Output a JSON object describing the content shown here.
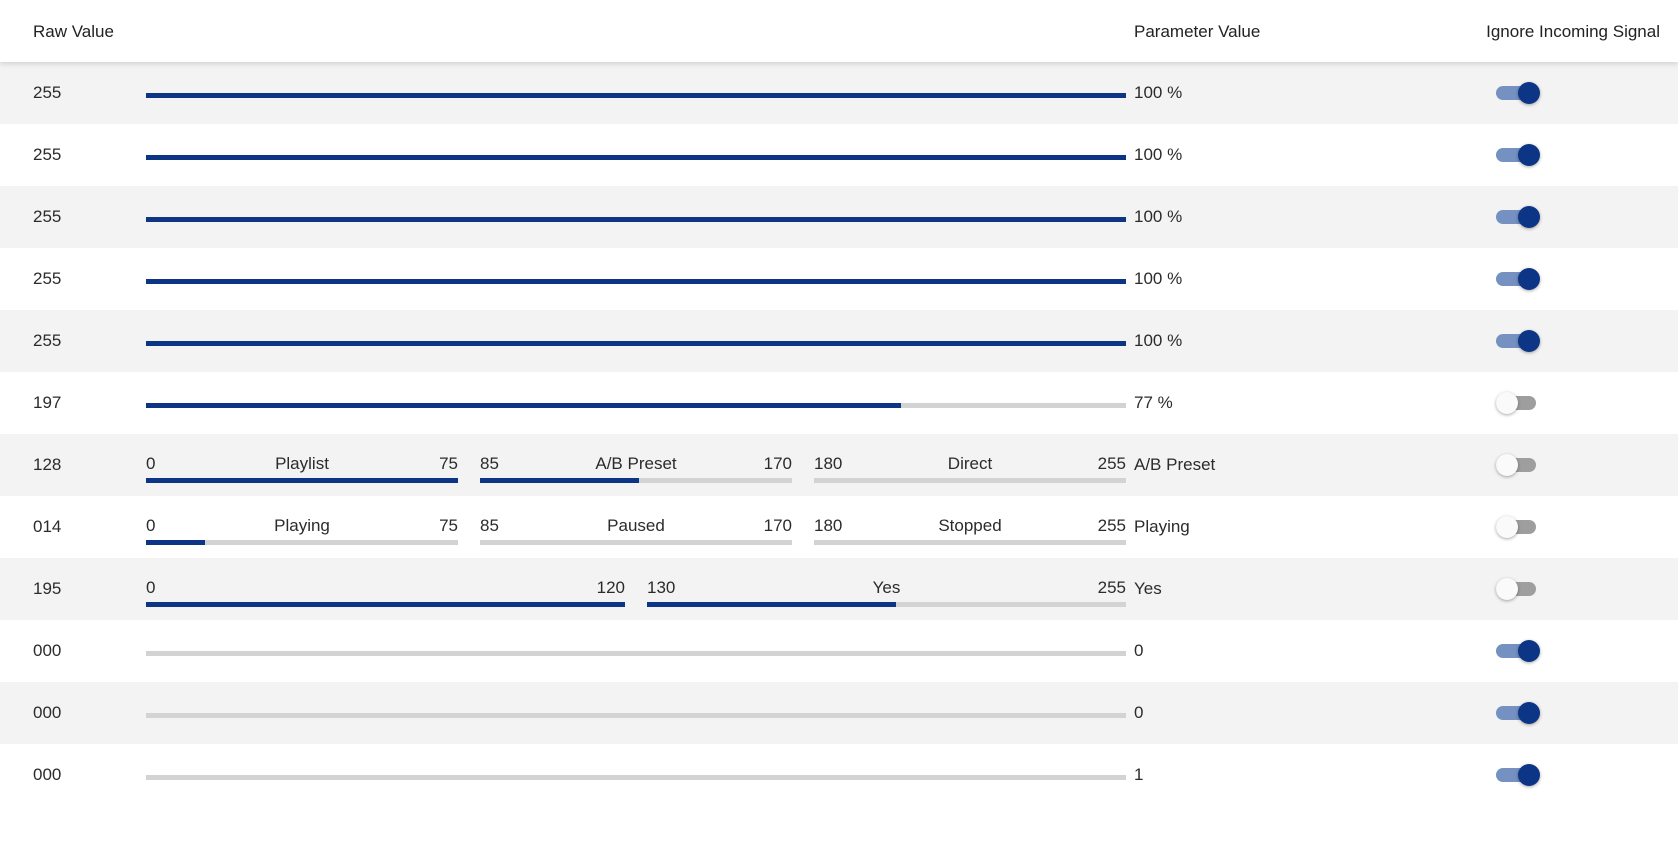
{
  "header": {
    "raw_value": "Raw Value",
    "parameter_value": "Parameter Value",
    "ignore_incoming_signal": "Ignore Incoming Signal"
  },
  "colors": {
    "fill": "#0c3585",
    "track": "#d3d3d3",
    "toggle_on_track": "#7591c2",
    "toggle_off_track": "#9e9e9e"
  },
  "rows": [
    {
      "raw": "255",
      "value": "100 %",
      "ignore": true,
      "type": "slider",
      "fill_fraction": 1.0
    },
    {
      "raw": "255",
      "value": "100 %",
      "ignore": true,
      "type": "slider",
      "fill_fraction": 1.0
    },
    {
      "raw": "255",
      "value": "100 %",
      "ignore": true,
      "type": "slider",
      "fill_fraction": 1.0
    },
    {
      "raw": "255",
      "value": "100 %",
      "ignore": true,
      "type": "slider",
      "fill_fraction": 1.0
    },
    {
      "raw": "255",
      "value": "100 %",
      "ignore": true,
      "type": "slider",
      "fill_fraction": 1.0
    },
    {
      "raw": "197",
      "value": "77 %",
      "ignore": false,
      "type": "slider",
      "fill_fraction": 0.77
    },
    {
      "raw": "128",
      "value": "A/B Preset",
      "ignore": false,
      "type": "segmented",
      "segments": [
        {
          "min": "0",
          "label": "Playlist",
          "max": "75",
          "fill_fraction": 1.0
        },
        {
          "min": "85",
          "label": "A/B Preset",
          "max": "170",
          "fill_fraction": 0.51
        },
        {
          "min": "180",
          "label": "Direct",
          "max": "255",
          "fill_fraction": 0.0
        }
      ]
    },
    {
      "raw": "014",
      "value": "Playing",
      "ignore": false,
      "type": "segmented",
      "segments": [
        {
          "min": "0",
          "label": "Playing",
          "max": "75",
          "fill_fraction": 0.19
        },
        {
          "min": "85",
          "label": "Paused",
          "max": "170",
          "fill_fraction": 0.0
        },
        {
          "min": "180",
          "label": "Stopped",
          "max": "255",
          "fill_fraction": 0.0
        }
      ]
    },
    {
      "raw": "195",
      "value": "Yes",
      "ignore": false,
      "type": "segmented",
      "segments": [
        {
          "min": "0",
          "label": "",
          "max": "120",
          "fill_fraction": 1.0
        },
        {
          "min": "130",
          "label": "Yes",
          "max": "255",
          "fill_fraction": 0.52
        }
      ]
    },
    {
      "raw": "000",
      "value": "0",
      "ignore": true,
      "type": "slider",
      "fill_fraction": 0.0
    },
    {
      "raw": "000",
      "value": "0",
      "ignore": true,
      "type": "slider",
      "fill_fraction": 0.0
    },
    {
      "raw": "000",
      "value": "1",
      "ignore": true,
      "type": "slider",
      "fill_fraction": 0.0
    }
  ]
}
